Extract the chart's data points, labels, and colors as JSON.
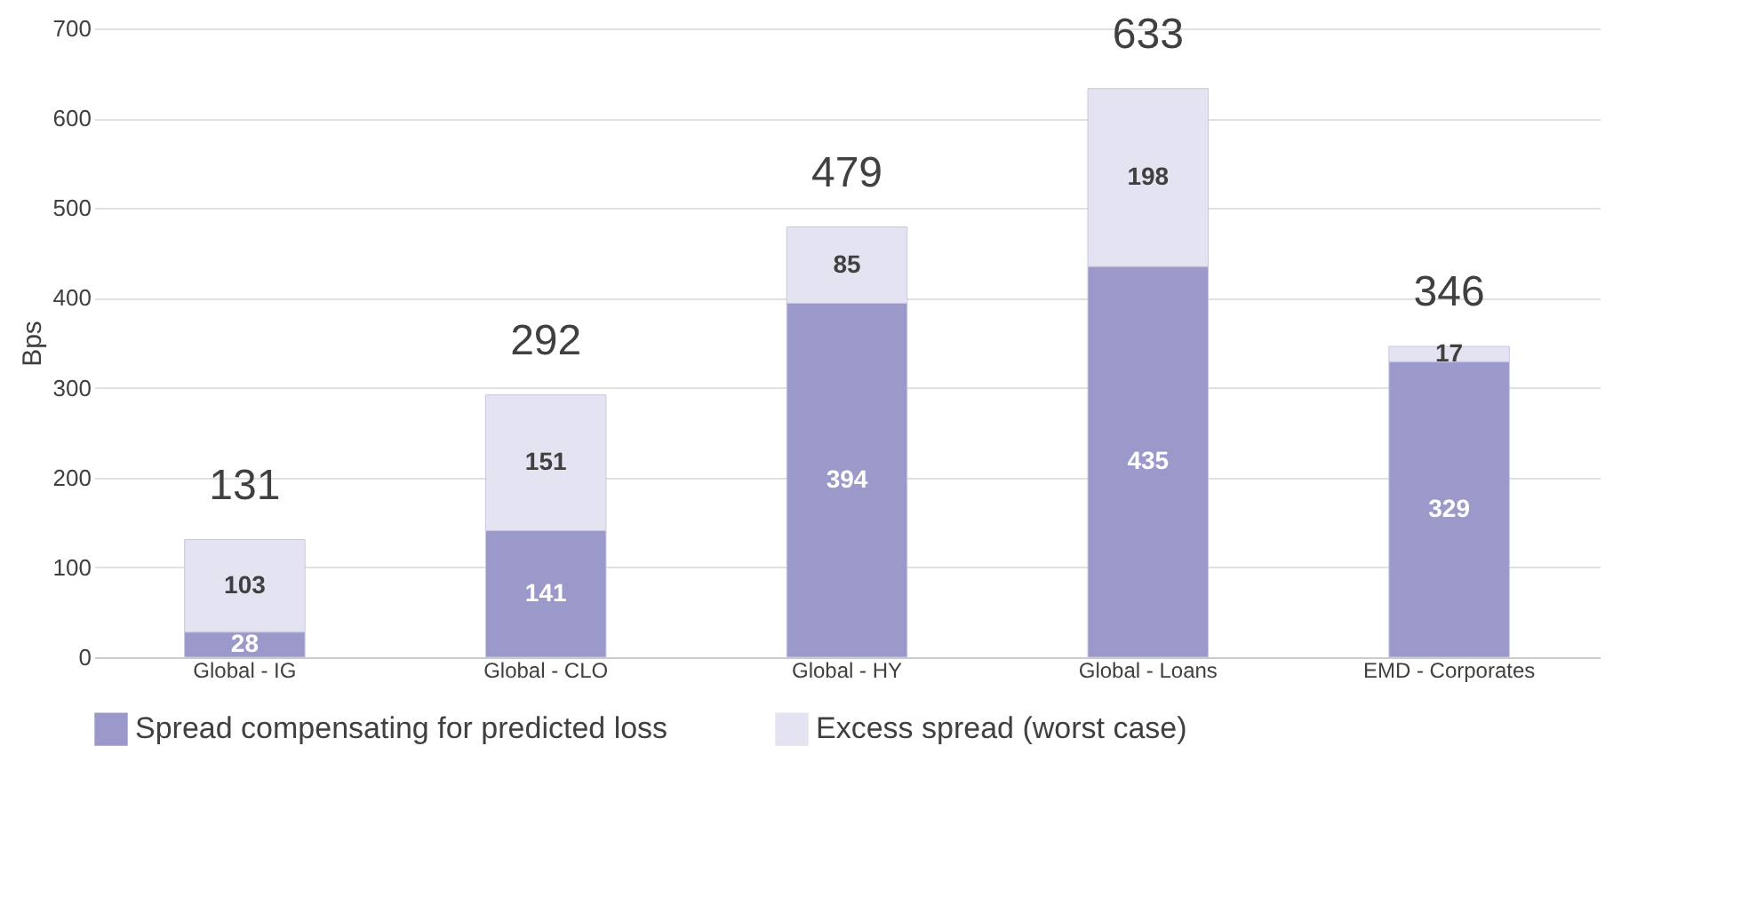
{
  "chart_data": {
    "type": "bar",
    "stacked": true,
    "ylabel": "Bps",
    "categories": [
      "Global - IG",
      "Global - CLO",
      "Global - HY",
      "Global - Loans",
      "EMD - Corporates"
    ],
    "series": [
      {
        "name": "Spread compensating for predicted loss",
        "color": "#9b99c9",
        "values": [
          28,
          141,
          394,
          435,
          329
        ]
      },
      {
        "name": "Excess spread (worst case)",
        "color": "#e4e3f1",
        "values": [
          103,
          151,
          85,
          198,
          17
        ]
      }
    ],
    "totals": [
      "131",
      "292",
      "479",
      "633",
      "346"
    ],
    "data_labels": true,
    "ylim": [
      0,
      700
    ],
    "yticks": [
      0,
      100,
      200,
      300,
      400,
      500,
      600,
      700
    ],
    "grid": "y",
    "legend": "bottom"
  }
}
